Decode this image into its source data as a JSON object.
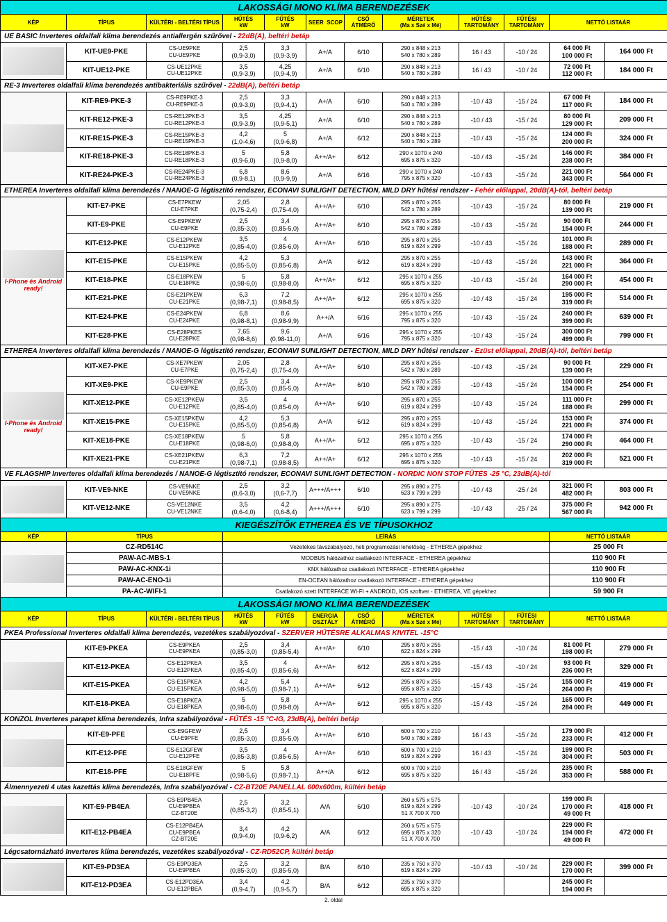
{
  "titles": {
    "main1": "LAKOSSÁGI MONO KLÍMA BERENDEZÉSEK",
    "main2": "KIEGÉSZÍTŐK ETHEREA ÉS VE TÍPUSOKHOZ",
    "main3": "LAKOSSÁGI MONO KLÍMA BERENDEZÉSEK"
  },
  "headers1": {
    "kep": "KÉP",
    "tipus": "TÍPUS",
    "kulteri": "KÜLTÉRI - BELTÉRI TÍPUS",
    "hutes": "HŰTÉS",
    "hutes_u": "kW",
    "futes": "FŰTÉS",
    "futes_u": "kW",
    "seer": "SEER",
    "scop": "SCOP",
    "cso": "CSŐ",
    "cso_u": "ÁTMÉRŐ",
    "meretek": "MÉRETEK",
    "meretek_u": "(Ma x Szé x Mé)",
    "hutesi": "HŰTÉSI",
    "hutesi_u": "TARTOMÁNY",
    "futesi": "FŰTÉSI",
    "futesi_u": "TARTOMÁNY",
    "netto": "NETTÓ LISTAÁR"
  },
  "headers2": {
    "kep": "KÉP",
    "tipus": "TÍPUS",
    "leiras": "LEÍRÁS",
    "netto": "NETTÓ LISTAÁR"
  },
  "headers3": {
    "energia": "ENERGIA",
    "energia_u": "OSZTÁLY"
  },
  "sections": {
    "ue": {
      "title": "UE BASIC Inverteres oldalfali klíma berendezés antiallergén szűrővel -",
      "note": "22dB(A), beltéri betáp"
    },
    "re3": {
      "title": "RE-3 Inverteres oldalfali klíma berendezés antibakteriális szűrővel -",
      "note": "22dB(A), beltéri betáp"
    },
    "etherea1": {
      "title": "ETHEREA Inverteres oldalfali klíma berendezés / NANOE-G légtisztító rendszer, ECONAVI SUNLIGHT DETECTION, MILD DRY hűtési rendszer -",
      "note": "Fehér előlappal, 20dB(A)-tól, beltéri betáp"
    },
    "etherea2": {
      "title": "ETHEREA Inverteres oldalfali klíma berendezés / NANOE-G légtisztító rendszer, ECONAVI SUNLIGHT DETECTION, MILD DRY hűtési rendszer -",
      "note": "Ezüst előlappal, 20dB(A)-tól, beltéri betáp"
    },
    "ve": {
      "title": "VE FLAGSHIP Inverteres oldalfali klíma berendezés / NANOE-G légtisztító rendszer, ECONAVI SUNLIGHT DETECTION -",
      "note": "NORDIC NON STOP FŰTÉS -25 °C, 23dB(A)-tól"
    },
    "pkea": {
      "title": "PKEA Professional Inverteres oldalfali klíma berendezés, vezetékes szabályozóval -",
      "note": "SZERVER HŰTÉSRE ALKALMAS KIVITEL -15°C"
    },
    "konzol": {
      "title": "KONZOL Inverteres parapet klíma berendezés, Infra szabályozóval -",
      "note": "FŰTÉS -15 °C-IG, 23dB(A), beltéri betáp"
    },
    "almenny": {
      "title": "Álmennyezeti 4 utas kazettás klíma berendezés, Infra szabályozóval -",
      "note": "CZ-BT20E PANELLAL 600x600m, kültéri betáp"
    },
    "legcs": {
      "title": "Légcsatornázható Inverteres klíma berendezés, vezetékes szabályozóval -",
      "note": "CZ-RD52CP, kültéri betáp"
    }
  },
  "iphone_note": "I-Phone és Android ready!",
  "ue_rows": [
    {
      "type": "KIT-UE9-PKE",
      "ku1": "CS-UE9PKE",
      "ku2": "CU-UE9PKE",
      "h1": "2,5",
      "h2": "(0,9-3,0)",
      "f1": "3,3",
      "f2": "(0,9-3,9)",
      "ss": "A+/A",
      "cso": "6/10",
      "m1": "290 x 848 x 213",
      "m2": "540 x 780 x 289",
      "ht": "16 / 43",
      "ft": "-10 / 24",
      "p1": "64 000 Ft",
      "p2": "100 000 Ft",
      "pr": "164 000 Ft"
    },
    {
      "type": "KIT-UE12-PKE",
      "ku1": "CS-UE12PKE",
      "ku2": "CU-UE12PKE",
      "h1": "3,5",
      "h2": "(0,9-3,9)",
      "f1": "4,25",
      "f2": "(0,9-4,9)",
      "ss": "A+/A",
      "cso": "6/10",
      "m1": "290 x 848 x 213",
      "m2": "540 x 780 x 289",
      "ht": "16 / 43",
      "ft": "-10 / 24",
      "p1": "72 000 Ft",
      "p2": "112 000 Ft",
      "pr": "184 000 Ft"
    }
  ],
  "re3_rows": [
    {
      "type": "KIT-RE9-PKE-3",
      "ku1": "CS-RE9PKE-3",
      "ku2": "CU-RE9PKE-3",
      "h1": "2,5",
      "h2": "(0,9-3,0)",
      "f1": "3,3",
      "f2": "(0,9-4,1)",
      "ss": "A+/A",
      "cso": "6/10",
      "m1": "290 x 848 x 213",
      "m2": "540 x 780 x 289",
      "ht": "-10 / 43",
      "ft": "-15 / 24",
      "p1": "67 000 Ft",
      "p2": "117 000 Ft",
      "pr": "184 000 Ft"
    },
    {
      "type": "KIT-RE12-PKE-3",
      "ku1": "CS-RE12PKE-3",
      "ku2": "CU-RE12PKE-3",
      "h1": "3,5",
      "h2": "(0,9-3,9)",
      "f1": "4,25",
      "f2": "(0,9-5,1)",
      "ss": "A+/A",
      "cso": "6/10",
      "m1": "290 x 848 x 213",
      "m2": "540 x 780 x 289",
      "ht": "-10 / 43",
      "ft": "-15 / 24",
      "p1": "80 000 Ft",
      "p2": "129 000 Ft",
      "pr": "209 000 Ft"
    },
    {
      "type": "KIT-RE15-PKE-3",
      "ku1": "CS-RE15PKE-3",
      "ku2": "CU-RE15PKE-3",
      "h1": "4,2",
      "h2": "(1,0-4,6)",
      "f1": "5",
      "f2": "(0,9-6,8)",
      "ss": "A+/A",
      "cso": "6/12",
      "m1": "290 x 848 x 213",
      "m2": "540 x 780 x 289",
      "ht": "-10 / 43",
      "ft": "-15 / 24",
      "p1": "124 000 Ft",
      "p2": "200 000 Ft",
      "pr": "324 000 Ft"
    },
    {
      "type": "KIT-RE18-PKE-3",
      "ku1": "CS-RE18PKE-3",
      "ku2": "CU-RE18PKE-3",
      "h1": "5",
      "h2": "(0,9-6,0)",
      "f1": "5,8",
      "f2": "(0,9-8,0)",
      "ss": "A++/A+",
      "cso": "6/12",
      "m1": "290 x 1070 x 240",
      "m2": "695 x 875 x 320",
      "ht": "-10 / 43",
      "ft": "-15 / 24",
      "p1": "146 000 Ft",
      "p2": "238 000 Ft",
      "pr": "384 000 Ft"
    },
    {
      "type": "KIT-RE24-PKE-3",
      "ku1": "CS-RE24PKE-3",
      "ku2": "CU-RE24PKE-3",
      "h1": "6,8",
      "h2": "(0,9-8,1)",
      "f1": "8,6",
      "f2": "(0,9-9,9)",
      "ss": "A+/A",
      "cso": "6/16",
      "m1": "290 x 1070 x 240",
      "m2": "795 x 875 x 320",
      "ht": "-10 / 43",
      "ft": "-15 / 24",
      "p1": "221 000 Ft",
      "p2": "343 000 Ft",
      "pr": "564 000 Ft"
    }
  ],
  "eth1_rows": [
    {
      "type": "KIT-E7-PKE",
      "ku1": "CS-E7PKEW",
      "ku2": "CU-E7PKE",
      "h1": "2,05",
      "h2": "(0,75-2,4)",
      "f1": "2,8",
      "f2": "(0,75-4,0)",
      "ss": "A++/A+",
      "cso": "6/10",
      "m1": "295 x 870 x 255",
      "m2": "542 x 780 x 289",
      "ht": "-10 / 43",
      "ft": "-15 / 24",
      "p1": "80 000 Ft",
      "p2": "139 000 Ft",
      "pr": "219 000 Ft"
    },
    {
      "type": "KIT-E9-PKE",
      "ku1": "CS-E9PKEW",
      "ku2": "CU-E9PKE",
      "h1": "2,5",
      "h2": "(0,85-3,0)",
      "f1": "3,4",
      "f2": "(0,85-5,0)",
      "ss": "A++/A+",
      "cso": "6/10",
      "m1": "295 x 870 x 255",
      "m2": "542 x 780 x 289",
      "ht": "-10 / 43",
      "ft": "-15 / 24",
      "p1": "90 000 Ft",
      "p2": "154 000 Ft",
      "pr": "244 000 Ft"
    },
    {
      "type": "KIT-E12-PKE",
      "ku1": "CS-E12PKEW",
      "ku2": "CU-E12PKE",
      "h1": "3,5",
      "h2": "(0,85-4,0)",
      "f1": "4",
      "f2": "(0,85-6,0)",
      "ss": "A++/A+",
      "cso": "6/10",
      "m1": "295 x 870 x 255",
      "m2": "619 x 824 x 299",
      "ht": "-10 / 43",
      "ft": "-15 / 24",
      "p1": "101 000 Ft",
      "p2": "188 000 Ft",
      "pr": "289 000 Ft"
    },
    {
      "type": "KIT-E15-PKE",
      "ku1": "CS-E15PKEW",
      "ku2": "CU-E15PKE",
      "h1": "4,2",
      "h2": "(0,85-5,0)",
      "f1": "5,3",
      "f2": "(0,85-6,8)",
      "ss": "A+/A",
      "cso": "6/12",
      "m1": "295 x 870 x 255",
      "m2": "619 x 824 x 299",
      "ht": "-10 / 43",
      "ft": "-15 / 24",
      "p1": "143 000 Ft",
      "p2": "221 000 Ft",
      "pr": "364 000 Ft"
    },
    {
      "type": "KIT-E18-PKE",
      "ku1": "CS-E18PKEW",
      "ku2": "CU-E18PKE",
      "h1": "5",
      "h2": "(0,98-6,0)",
      "f1": "5,8",
      "f2": "(0,98-8,0)",
      "ss": "A++/A+",
      "cso": "6/12",
      "m1": "295 x 1070 x 255",
      "m2": "695 x 875 x 320",
      "ht": "-10 / 43",
      "ft": "-15 / 24",
      "p1": "164 000 Ft",
      "p2": "290 000 Ft",
      "pr": "454 000 Ft"
    },
    {
      "type": "KIT-E21-PKE",
      "ku1": "CS-E21PKEW",
      "ku2": "CU-E21PKE",
      "h1": "6,3",
      "h2": "(0,98-7,1)",
      "f1": "7,2",
      "f2": "(0,98-8,5)",
      "ss": "A++/A+",
      "cso": "6/12",
      "m1": "295 x 1070 x 255",
      "m2": "695 x 875 x 320",
      "ht": "-10 / 43",
      "ft": "-15 / 24",
      "p1": "195 000 Ft",
      "p2": "319 000 Ft",
      "pr": "514 000 Ft"
    },
    {
      "type": "KIT-E24-PKE",
      "ku1": "CS-E24PKEW",
      "ku2": "CU-E24PKE",
      "h1": "6,8",
      "h2": "(0,98-8,1)",
      "f1": "8,6",
      "f2": "(0,98-9,9)",
      "ss": "A++/A",
      "cso": "6/16",
      "m1": "295 x 1070 x 255",
      "m2": "795 x 875 x 320",
      "ht": "-10 / 43",
      "ft": "-15 / 24",
      "p1": "240 000 Ft",
      "p2": "399 000 Ft",
      "pr": "639 000 Ft"
    },
    {
      "type": "KIT-E28-PKE",
      "ku1": "CS-E28PKES",
      "ku2": "CU-E28PKE",
      "h1": "7,65",
      "h2": "(0,98-8,6)",
      "f1": "9,6",
      "f2": "(0,98-11,0)",
      "ss": "A+/A",
      "cso": "6/16",
      "m1": "295 x 1070 x 255",
      "m2": "795 x 875 x 320",
      "ht": "-10 / 43",
      "ft": "-15 / 24",
      "p1": "300 000 Ft",
      "p2": "499 000 Ft",
      "pr": "799 000 Ft"
    }
  ],
  "eth2_rows": [
    {
      "type": "KIT-XE7-PKE",
      "ku1": "CS-XE7PKEW",
      "ku2": "CU-E7PKE",
      "h1": "2,05",
      "h2": "(0,75-2,4)",
      "f1": "2,8",
      "f2": "(0,75-4,0)",
      "ss": "A++/A+",
      "cso": "6/10",
      "m1": "295 x 870 x 255",
      "m2": "542 x 780 x 289",
      "ht": "-10 / 43",
      "ft": "-15 / 24",
      "p1": "90 000 Ft",
      "p2": "139 000 Ft",
      "pr": "229 000 Ft"
    },
    {
      "type": "KIT-XE9-PKE",
      "ku1": "CS-XE9PKEW",
      "ku2": "CU-E9PKE",
      "h1": "2,5",
      "h2": "(0,85-3,0)",
      "f1": "3,4",
      "f2": "(0,85-5,0)",
      "ss": "A++/A+",
      "cso": "6/10",
      "m1": "295 x 870 x 255",
      "m2": "542 x 780 x 289",
      "ht": "-10 / 43",
      "ft": "-15 / 24",
      "p1": "100 000 Ft",
      "p2": "154 000 Ft",
      "pr": "254 000 Ft"
    },
    {
      "type": "KIT-XE12-PKE",
      "ku1": "CS-XE12PKEW",
      "ku2": "CU-E12PKE",
      "h1": "3,5",
      "h2": "(0,85-4,0)",
      "f1": "4",
      "f2": "(0,85-6,0)",
      "ss": "A++/A+",
      "cso": "6/10",
      "m1": "295 x 870 x 255",
      "m2": "619 x 824 x 299",
      "ht": "-10 / 43",
      "ft": "-15 / 24",
      "p1": "111 000 Ft",
      "p2": "188 000 Ft",
      "pr": "299 000 Ft"
    },
    {
      "type": "KIT-XE15-PKE",
      "ku1": "CS-XE15PKEW",
      "ku2": "CU-E15PKE",
      "h1": "4,2",
      "h2": "(0,85-5,0)",
      "f1": "5,3",
      "f2": "(0,85-6,8)",
      "ss": "A+/A",
      "cso": "6/12",
      "m1": "295 x 870 x 255",
      "m2": "619 x 824 x 299",
      "ht": "-10 / 43",
      "ft": "-15 / 24",
      "p1": "153 000 Ft",
      "p2": "221 000 Ft",
      "pr": "374 000 Ft"
    },
    {
      "type": "KIT-XE18-PKE",
      "ku1": "CS-XE18PKEW",
      "ku2": "CU-E18PKE",
      "h1": "5",
      "h2": "(0,98-6,0)",
      "f1": "5,8",
      "f2": "(0,98-8,0)",
      "ss": "A++/A+",
      "cso": "6/12",
      "m1": "295 x 1070 x 255",
      "m2": "695 x 875 x 320",
      "ht": "-10 / 43",
      "ft": "-15 / 24",
      "p1": "174 000 Ft",
      "p2": "290 000 Ft",
      "pr": "464 000 Ft"
    },
    {
      "type": "KIT-XE21-PKE",
      "ku1": "CS-XE21PKEW",
      "ku2": "CU-E21PKE",
      "h1": "6,3",
      "h2": "(0,98-7,1)",
      "f1": "7,2",
      "f2": "(0,98-8,5)",
      "ss": "A++/A+",
      "cso": "6/12",
      "m1": "295 x 1070 x 255",
      "m2": "695 x 875 x 320",
      "ht": "-10 / 43",
      "ft": "-15 / 24",
      "p1": "202 000 Ft",
      "p2": "319 000 Ft",
      "pr": "521 000 Ft"
    }
  ],
  "ve_rows": [
    {
      "type": "KIT-VE9-NKE",
      "ku1": "CS-VE9NKE",
      "ku2": "CU-VE9NKE",
      "h1": "2,5",
      "h2": "(0,6-3,0)",
      "f1": "3,2",
      "f2": "(0,6-7,7)",
      "ss": "A+++/A+++",
      "cso": "6/10",
      "m1": "295 x 890 x 275",
      "m2": "623 x 799 x 299",
      "ht": "-10 / 43",
      "ft": "-25 / 24",
      "p1": "321 000 Ft",
      "p2": "482 000 Ft",
      "pr": "803 000 Ft"
    },
    {
      "type": "KIT-VE12-NKE",
      "ku1": "CS-VE12NKE",
      "ku2": "CU-VE12NKE",
      "h1": "3,5",
      "h2": "(0,6-4,0)",
      "f1": "4,2",
      "f2": "(0,6-8,4)",
      "ss": "A+++/A+++",
      "cso": "6/10",
      "m1": "295 x 890 x 275",
      "m2": "623 x 799 x 299",
      "ht": "-10 / 43",
      "ft": "-25 / 24",
      "p1": "375 000 Ft",
      "p2": "567 000 Ft",
      "pr": "942 000 Ft"
    }
  ],
  "acc_rows": [
    {
      "type": "CZ-RD514C",
      "desc": "Vezetékes távszabályozó, heti programozási lehetőség - ETHEREA gépekhez",
      "pr": "25 000 Ft"
    },
    {
      "type": "PAW-AC-MBS-1",
      "desc": "MODBUS hálózathoz csatlakozó INTERFACE - ETHEREA gépekhez",
      "pr": "110 900 Ft"
    },
    {
      "type": "PAW-AC-KNX-1i",
      "desc": "KNX hálózathoz csatlakozó INTERFACE - ETHEREA gépekhez",
      "pr": "110 900 Ft"
    },
    {
      "type": "PAW-AC-ENO-1i",
      "desc": "EN-OCEAN hálózathoz csatlakozó INTERFACE - ETHEREA gépekhez",
      "pr": "110 900 Ft"
    },
    {
      "type": "PA-AC-WIFI-1",
      "desc": "Csatlakozó szett INTERFACE WI-FI + ANDROID, IOS szoftver - ETHEREA, VE gépekhez",
      "pr": "59 900 Ft"
    }
  ],
  "pkea_rows": [
    {
      "type": "KIT-E9-PKEA",
      "ku1": "CS-E9PKEA",
      "ku2": "CU-E9PKEA",
      "h1": "2,5",
      "h2": "(0,85-3,0)",
      "f1": "3,4",
      "f2": "(0,85-5,4)",
      "ss": "A++/A+",
      "cso": "6/10",
      "m1": "295 x 870 x 255",
      "m2": "622 x 824 x 299",
      "ht": "-15 / 43",
      "ft": "-10 / 24",
      "p1": "81 000 Ft",
      "p2": "198 000 Ft",
      "pr": "279 000 Ft"
    },
    {
      "type": "KIT-E12-PKEA",
      "ku1": "CS-E12PKEA",
      "ku2": "CU-E12PKEA",
      "h1": "3,5",
      "h2": "(0,85-4,0)",
      "f1": "4",
      "f2": "(0,85-6,6)",
      "ss": "A++/A+",
      "cso": "6/12",
      "m1": "295 x 870 x 255",
      "m2": "622 x 824 x 299",
      "ht": "-15 / 43",
      "ft": "-10 / 24",
      "p1": "93 000 Ft",
      "p2": "236 000 Ft",
      "pr": "329 000 Ft"
    },
    {
      "type": "KIT-E15-PKEA",
      "ku1": "CS-E15PKEA",
      "ku2": "CU-E15PKEA",
      "h1": "4,2",
      "h2": "(0,98-5,0)",
      "f1": "5,4",
      "f2": "(0,98-7,1)",
      "ss": "A++/A+",
      "cso": "6/12",
      "m1": "295 x 870 x 255",
      "m2": "695 x 875 x 320",
      "ht": "-15 / 43",
      "ft": "-15 / 24",
      "p1": "155 000 Ft",
      "p2": "264 000 Ft",
      "pr": "419 000 Ft"
    },
    {
      "type": "KIT-E18-PKEA",
      "ku1": "CS-E18PKEA",
      "ku2": "CU-E18PKEA",
      "h1": "5",
      "h2": "(0,98-6,0)",
      "f1": "5,8",
      "f2": "(0,98-8,0)",
      "ss": "A++/A+",
      "cso": "6/12",
      "m1": "295 x 1070 x 255",
      "m2": "695 x 875 x 320",
      "ht": "-15 / 43",
      "ft": "-15 / 24",
      "p1": "165 000 Ft",
      "p2": "284 000 Ft",
      "pr": "449 000 Ft"
    }
  ],
  "konzol_rows": [
    {
      "type": "KIT-E9-PFE",
      "ku1": "CS-E9GFEW",
      "ku2": "CU-E9PFE",
      "h1": "2,5",
      "h2": "(0,85-3,0)",
      "f1": "3,4",
      "f2": "(0,85-5,0)",
      "ss": "A++/A+",
      "cso": "6/10",
      "m1": "600 x 700 x 210",
      "m2": "540 x 780 x 289",
      "ht": "16 / 43",
      "ft": "-15 / 24",
      "p1": "179 000 Ft",
      "p2": "233 000 Ft",
      "pr": "412 000 Ft"
    },
    {
      "type": "KIT-E12-PFE",
      "ku1": "CS-E12GFEW",
      "ku2": "CU-E12PFE",
      "h1": "3,5",
      "h2": "(0,85-3,8)",
      "f1": "4",
      "f2": "(0,85-6,5)",
      "ss": "A++/A+",
      "cso": "6/10",
      "m1": "600 x 700 x 210",
      "m2": "619 x 824 x 299",
      "ht": "16 / 43",
      "ft": "-15 / 24",
      "p1": "199 000 Ft",
      "p2": "304 000 Ft",
      "pr": "503 000 Ft"
    },
    {
      "type": "KIT-E18-PFE",
      "ku1": "CS-E18GFEW",
      "ku2": "CU-E18PFE",
      "h1": "5",
      "h2": "(0,98-5,6)",
      "f1": "5,8",
      "f2": "(0,98-7,1)",
      "ss": "A++/A",
      "cso": "6/12",
      "m1": "600 x 700 x 210",
      "m2": "695 x 875 x 320",
      "ht": "16 / 43",
      "ft": "-15 / 24",
      "p1": "235 000 Ft",
      "p2": "353 000 Ft",
      "pr": "588 000 Ft"
    }
  ],
  "almenny_rows": [
    {
      "type": "KIT-E9-PB4EA",
      "ku1": "CS-E9PB4EA",
      "ku2": "CU-E9PBEA",
      "ku3": "CZ-BT20E",
      "h1": "2,5",
      "h2": "(0,85-3,2)",
      "f1": "3,2",
      "f2": "(0,85-5,1)",
      "ss": "A/A",
      "cso": "6/10",
      "m1": "260 x 575 x 575",
      "m2": "619 x 824 x 299",
      "m3": "51 X 700 X 700",
      "ht": "-10 / 43",
      "ft": "-10 / 24",
      "p1": "199 000 Ft",
      "p2": "170 000 Ft",
      "p3": "49 000 Ft",
      "pr": "418 000 Ft"
    },
    {
      "type": "KIT-E12-PB4EA",
      "ku1": "CS-E12PB4EA",
      "ku2": "CU-E9PBEA",
      "ku3": "CZ-BT20E",
      "h1": "3,4",
      "h2": "(0,9-4,0)",
      "f1": "4,2",
      "f2": "(0,9-6,2)",
      "ss": "A/A",
      "cso": "6/12",
      "m1": "260 x 575 x 575",
      "m2": "695 x 875 x 320",
      "m3": "51 X 700 X 700",
      "ht": "-10 / 43",
      "ft": "-10 / 24",
      "p1": "229 000 Ft",
      "p2": "194 000 Ft",
      "p3": "49 000 Ft",
      "pr": "472 000 Ft"
    }
  ],
  "legcs_rows": [
    {
      "type": "KIT-E9-PD3EA",
      "ku1": "CS-E9PD3EA",
      "ku2": "CU-E9PBEA",
      "h1": "2,5",
      "h2": "(0,85-3,0)",
      "f1": "3,2",
      "f2": "(0,85-5,0)",
      "ss": "B/A",
      "cso": "6/10",
      "m1": "235 x 750 x 370",
      "m2": "619 x 824 x 299",
      "ht": "-10 / 43",
      "ft": "-10 / 24",
      "p1": "229 000 Ft",
      "p2": "170 000 Ft",
      "pr": "399 000 Ft"
    },
    {
      "type": "KIT-E12-PD3EA",
      "ku1": "CS-E12PD3EA",
      "ku2": "CU-E12PBEA",
      "h1": "3,4",
      "h2": "(0,9-4,7)",
      "f1": "4,2",
      "f2": "(0,9-5,7)",
      "ss": "B/A",
      "cso": "6/12",
      "m1": "235 x 750 x 370",
      "m2": "695 x 875 x 320",
      "ht": "",
      "ft": "",
      "p1": "245 000 Ft",
      "p2": "194 000 Ft",
      "pr": ""
    }
  ],
  "footer": "2. oldal"
}
